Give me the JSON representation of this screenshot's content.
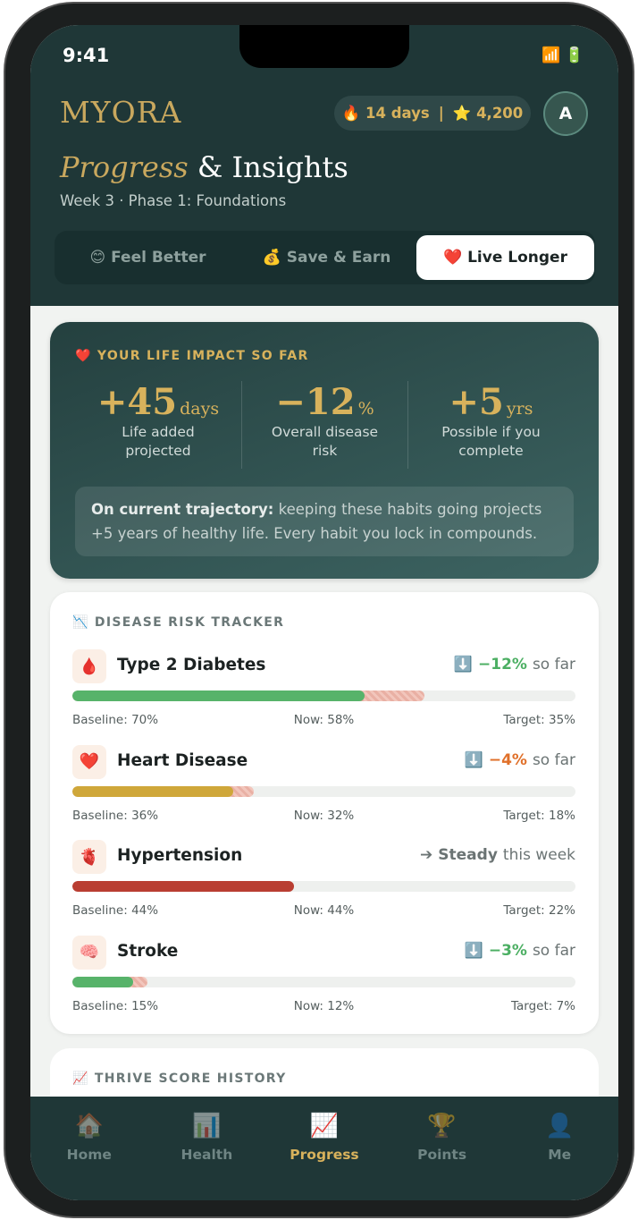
{
  "status_bar": {
    "time": "9:41",
    "signal": "📶",
    "battery": "🔋"
  },
  "header": {
    "brand": "MYORA",
    "streak": "🔥 14 days",
    "divider": "|",
    "points": "⭐ 4,200",
    "avatar": "A",
    "title_italic": "Progress",
    "title_rest": "& Insights",
    "subtitle": "Week 3 · Phase 1: Foundations"
  },
  "tabs": [
    {
      "label": "😊 Feel Better"
    },
    {
      "label": "💰 Save & Earn"
    },
    {
      "label": "❤️ Live Longer",
      "active": true
    }
  ],
  "impact": {
    "heading": "❤️ YOUR LIFE IMPACT SO FAR",
    "stats": [
      {
        "value": "+45",
        "unit": "days",
        "label": "Life added projected"
      },
      {
        "value": "−12",
        "unit": "%",
        "label": "Overall disease risk"
      },
      {
        "value": "+5",
        "unit": "yrs",
        "label": "Possible if you complete"
      }
    ],
    "note_bold": "On current trajectory:",
    "note": "keeping these habits going projects +5 years of healthy life. Every habit you lock in compounds."
  },
  "risk": {
    "heading": "📉 DISEASE RISK TRACKER",
    "items": [
      {
        "icon": "🩸",
        "name": "Type 2 Diabetes",
        "change_icon": "⬇️",
        "change": "−12%",
        "suffix": "so far",
        "change_color": "#4caf63",
        "bar_color": "#57b36a",
        "baseline": 70,
        "now": 58,
        "target": 35,
        "baseline_label": "Baseline: 70%",
        "now_label": "Now: 58%",
        "target_label": "Target: 35%"
      },
      {
        "icon": "❤️",
        "name": "Heart Disease",
        "change_icon": "⬇️",
        "change": "−4%",
        "suffix": "so far",
        "change_color": "#e0702a",
        "bar_color": "#cfa73a",
        "baseline": 36,
        "now": 32,
        "target": 18,
        "baseline_label": "Baseline: 36%",
        "now_label": "Now: 32%",
        "target_label": "Target: 18%"
      },
      {
        "icon": "🫀",
        "name": "Hypertension",
        "change_icon": "➔",
        "change": "Steady",
        "suffix": "this week",
        "change_color": "#6b7474",
        "bar_color": "#b93e32",
        "baseline": 44,
        "now": 44,
        "target": 22,
        "baseline_label": "Baseline: 44%",
        "now_label": "Now: 44%",
        "target_label": "Target: 22%"
      },
      {
        "icon": "🧠",
        "name": "Stroke",
        "change_icon": "⬇️",
        "change": "−3%",
        "suffix": "so far",
        "change_color": "#4caf63",
        "bar_color": "#57b36a",
        "baseline": 15,
        "now": 12,
        "target": 7,
        "baseline_label": "Baseline: 15%",
        "now_label": "Now: 12%",
        "target_label": "Target: 7%"
      }
    ]
  },
  "thrive": {
    "heading": "📈 THRIVE SCORE HISTORY"
  },
  "nav": [
    {
      "icon": "🏠",
      "label": "Home"
    },
    {
      "icon": "📊",
      "label": "Health"
    },
    {
      "icon": "📈",
      "label": "Progress",
      "active": true
    },
    {
      "icon": "🏆",
      "label": "Points"
    },
    {
      "icon": "👤",
      "label": "Me"
    }
  ]
}
